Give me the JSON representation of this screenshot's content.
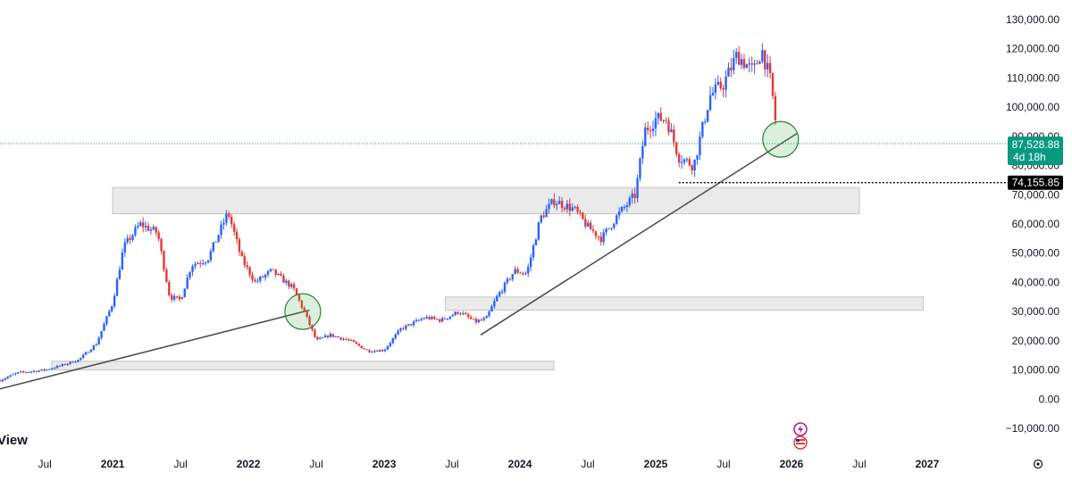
{
  "chart_data": {
    "type": "candlestick",
    "y_ticks": [
      "130,000.00",
      "120,000.00",
      "110,000.00",
      "100,000.00",
      "90,000.00",
      "80,000.00",
      "70,000.00",
      "60,000.00",
      "50,000.00",
      "40,000.00",
      "30,000.00",
      "20,000.00",
      "10,000.00",
      "0.00",
      "−10,000.00"
    ],
    "y_tick_values": [
      130000,
      120000,
      110000,
      100000,
      90000,
      80000,
      70000,
      60000,
      50000,
      40000,
      30000,
      20000,
      10000,
      0,
      -10000
    ],
    "ylim": [
      -13000,
      135000
    ],
    "x_ticks": [
      {
        "label": "Jul",
        "t": 2020.5,
        "bold": false
      },
      {
        "label": "2021",
        "t": 2021.0,
        "bold": true
      },
      {
        "label": "Jul",
        "t": 2021.5,
        "bold": false
      },
      {
        "label": "2022",
        "t": 2022.0,
        "bold": true
      },
      {
        "label": "Jul",
        "t": 2022.5,
        "bold": false
      },
      {
        "label": "2023",
        "t": 2023.0,
        "bold": true
      },
      {
        "label": "Jul",
        "t": 2023.5,
        "bold": false
      },
      {
        "label": "2024",
        "t": 2024.0,
        "bold": true
      },
      {
        "label": "Jul",
        "t": 2024.5,
        "bold": false
      },
      {
        "label": "2025",
        "t": 2025.0,
        "bold": true
      },
      {
        "label": "Jul",
        "t": 2025.5,
        "bold": false
      },
      {
        "label": "2026",
        "t": 2026.0,
        "bold": true
      },
      {
        "label": "Jul",
        "t": 2026.5,
        "bold": false
      },
      {
        "label": "2027",
        "t": 2027.0,
        "bold": true
      }
    ],
    "xlim": [
      2020.17,
      2027.54
    ],
    "series_anchors": [
      [
        2020.17,
        6500
      ],
      [
        2020.3,
        9000
      ],
      [
        2020.5,
        10000
      ],
      [
        2020.62,
        11500
      ],
      [
        2020.75,
        13500
      ],
      [
        2020.88,
        19000
      ],
      [
        2021.0,
        33000
      ],
      [
        2021.08,
        52000
      ],
      [
        2021.2,
        60000
      ],
      [
        2021.33,
        57000
      ],
      [
        2021.42,
        35000
      ],
      [
        2021.5,
        34000
      ],
      [
        2021.58,
        46000
      ],
      [
        2021.7,
        48000
      ],
      [
        2021.85,
        64000
      ],
      [
        2021.95,
        48000
      ],
      [
        2022.05,
        40000
      ],
      [
        2022.17,
        44000
      ],
      [
        2022.33,
        38000
      ],
      [
        2022.42,
        29000
      ],
      [
        2022.5,
        20000
      ],
      [
        2022.6,
        22000
      ],
      [
        2022.75,
        20000
      ],
      [
        2022.88,
        16500
      ],
      [
        2023.0,
        16800
      ],
      [
        2023.12,
        24000
      ],
      [
        2023.3,
        28000
      ],
      [
        2023.42,
        27000
      ],
      [
        2023.55,
        30000
      ],
      [
        2023.67,
        26500
      ],
      [
        2023.75,
        27500
      ],
      [
        2023.83,
        35000
      ],
      [
        2023.96,
        44000
      ],
      [
        2024.05,
        43000
      ],
      [
        2024.15,
        62000
      ],
      [
        2024.25,
        68000
      ],
      [
        2024.4,
        65000
      ],
      [
        2024.5,
        59000
      ],
      [
        2024.6,
        55000
      ],
      [
        2024.72,
        63000
      ],
      [
        2024.85,
        70000
      ],
      [
        2024.92,
        92000
      ],
      [
        2025.0,
        96000
      ],
      [
        2025.08,
        96000
      ],
      [
        2025.17,
        83000
      ],
      [
        2025.28,
        80000
      ],
      [
        2025.4,
        104000
      ],
      [
        2025.5,
        108000
      ],
      [
        2025.6,
        118000
      ],
      [
        2025.72,
        112000
      ],
      [
        2025.78,
        120000
      ],
      [
        2025.85,
        108000
      ],
      [
        2025.9,
        88000
      ]
    ],
    "last_price": {
      "value": 87528.88,
      "label": "87,528.88",
      "countdown": "4d 18h",
      "color": "#089981"
    },
    "level_marker": {
      "value": 74155.85,
      "label": "74,155.85",
      "from_t": 2025.17
    },
    "zones": [
      {
        "t0": 2021.05,
        "t1": 2022.1,
        "y0": 10000,
        "y1": 13000
      },
      {
        "t0": 2021.8,
        "t1": 2022.1,
        "y0": 10000,
        "y1": 13000
      },
      {
        "t0": 2020.55,
        "t1": 2023.0,
        "y0": 10000,
        "y1": 13000
      },
      {
        "t0": 2023.0,
        "t1": 2024.25,
        "y0": 10000,
        "y1": 13000
      },
      {
        "t0": 2021.0,
        "t1": 2025.63,
        "y0": 63500,
        "y1": 72500
      },
      {
        "t0": 2025.63,
        "t1": 2026.5,
        "y0": 63500,
        "y1": 72500
      },
      {
        "t0": 2023.45,
        "t1": 2026.97,
        "y0": 30500,
        "y1": 35000
      }
    ],
    "trendlines": [
      {
        "t0": 2020.17,
        "y0": 3500,
        "t1": 2022.45,
        "y1": 30500
      },
      {
        "t0": 2023.71,
        "y0": 22000,
        "t1": 2026.04,
        "y1": 91000
      }
    ],
    "circles": [
      {
        "t": 2022.4,
        "y": 30000
      },
      {
        "t": 2025.92,
        "y": 89000
      }
    ],
    "up_color": "#2962ff",
    "down_color": "#e53935"
  },
  "chart_labels": {
    "watermark_fragment": "View"
  }
}
